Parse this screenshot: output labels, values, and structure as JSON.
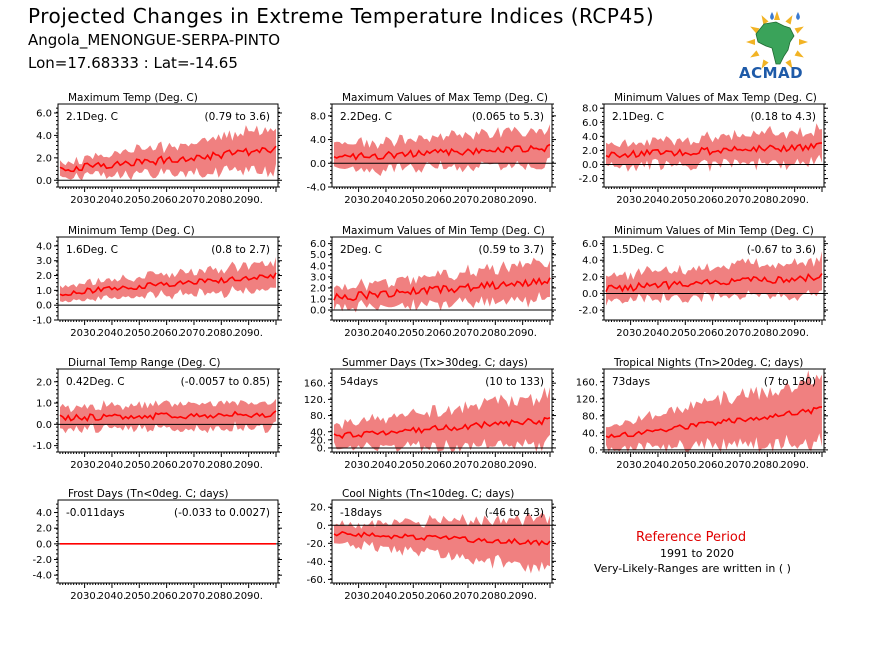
{
  "header": {
    "title": "Projected Changes in Extreme Temperature Indices (RCP45)",
    "station": "Angola_MENONGUE-SERPA-PINTO",
    "coords": "Lon=17.68333 : Lat=-14.65",
    "logo_text": "ACMAD"
  },
  "reference": {
    "title": "Reference Period",
    "years": "1991 to 2020",
    "note": "Very-Likely-Ranges are written in ( )"
  },
  "colors": {
    "band": "#f08080",
    "line": "#ff0000",
    "axis": "#000000",
    "zero": "#000000",
    "ref_title": "#e00000"
  },
  "chart_data": [
    {
      "type": "line",
      "title": "Maximum Temp (Deg. C)",
      "summary": "2.1Deg. C",
      "range": "(0.79 to 3.6)",
      "x_start": 2021,
      "x_end": 2100,
      "xticks": [
        "2030.",
        "2040.",
        "2050.",
        "2060.",
        "2070.",
        "2080.",
        "2090."
      ],
      "yticks": [
        "0.0",
        "2.0",
        "4.0",
        "6.0"
      ],
      "ylim": [
        -0.6,
        6.8
      ],
      "median_start": 1.0,
      "median_end": 2.7,
      "band_start": 0.6,
      "band_end": 1.9,
      "noise": 0.35
    },
    {
      "type": "line",
      "title": "Maximum Values of Max Temp (Deg. C)",
      "summary": "2.2Deg. C",
      "range": "(0.065 to 5.3)",
      "x_start": 2021,
      "x_end": 2100,
      "xticks": [
        "2030.",
        "2040.",
        "2050.",
        "2060.",
        "2070.",
        "2080.",
        "2090."
      ],
      "yticks": [
        "-4.0",
        "0.0",
        "4.0",
        "8.0"
      ],
      "ylim": [
        -4.0,
        10.0
      ],
      "median_start": 1.0,
      "median_end": 2.6,
      "band_start": 2.2,
      "band_end": 3.0,
      "noise": 0.6
    },
    {
      "type": "line",
      "title": "Minimum Values of Max Temp (Deg. C)",
      "summary": "2.1Deg. C",
      "range": "(0.18 to 4.3)",
      "x_start": 2021,
      "x_end": 2100,
      "xticks": [
        "2030.",
        "2040.",
        "2050.",
        "2060.",
        "2070.",
        "2080.",
        "2090."
      ],
      "yticks": [
        "-2.0",
        "0.0",
        "2.0",
        "4.0",
        "6.0",
        "8.0"
      ],
      "ylim": [
        -3.2,
        8.6
      ],
      "median_start": 1.3,
      "median_end": 2.6,
      "band_start": 1.6,
      "band_end": 2.3,
      "noise": 0.5
    },
    {
      "type": "line",
      "title": "Minimum Temp (Deg. C)",
      "summary": "1.6Deg. C",
      "range": "(0.8 to 2.7)",
      "x_start": 2021,
      "x_end": 2100,
      "xticks": [
        "2030.",
        "2040.",
        "2050.",
        "2060.",
        "2070.",
        "2080.",
        "2090."
      ],
      "yticks": [
        "-1.0",
        "0.0",
        "1.0",
        "2.0",
        "3.0",
        "4.0"
      ],
      "ylim": [
        -1.0,
        4.6
      ],
      "median_start": 0.8,
      "median_end": 2.0,
      "band_start": 0.5,
      "band_end": 0.9,
      "noise": 0.2
    },
    {
      "type": "line",
      "title": "Maximum Values of Min Temp (Deg. C)",
      "summary": "2Deg. C",
      "range": "(0.59 to 3.7)",
      "x_start": 2021,
      "x_end": 2100,
      "xticks": [
        "2030.",
        "2040.",
        "2050.",
        "2060.",
        "2070.",
        "2080.",
        "2090."
      ],
      "yticks": [
        "0.0",
        "1.0",
        "2.0",
        "3.0",
        "4.0",
        "5.0",
        "6.0"
      ],
      "ylim": [
        -0.9,
        6.6
      ],
      "median_start": 1.1,
      "median_end": 2.6,
      "band_start": 0.9,
      "band_end": 1.7,
      "noise": 0.35
    },
    {
      "type": "line",
      "title": "Minimum Values of Min Temp (Deg. C)",
      "summary": "1.5Deg. C",
      "range": "(-0.67 to 3.6)",
      "x_start": 2021,
      "x_end": 2100,
      "xticks": [
        "2030.",
        "2040.",
        "2050.",
        "2060.",
        "2070.",
        "2080.",
        "2090."
      ],
      "yticks": [
        "-2.0",
        "0.0",
        "2.0",
        "4.0",
        "6.0"
      ],
      "ylim": [
        -3.2,
        6.8
      ],
      "median_start": 0.6,
      "median_end": 2.0,
      "band_start": 1.5,
      "band_end": 2.2,
      "noise": 0.45
    },
    {
      "type": "line",
      "title": "Diurnal Temp Range (Deg. C)",
      "summary": "0.42Deg. C",
      "range": "(-0.0057 to 0.85)",
      "x_start": 2021,
      "x_end": 2100,
      "xticks": [
        "2030.",
        "2040.",
        "2050.",
        "2060.",
        "2070.",
        "2080.",
        "2090."
      ],
      "yticks": [
        "-1.0",
        "0.0",
        "1.0",
        "2.0"
      ],
      "ylim": [
        -1.3,
        2.6
      ],
      "median_start": 0.3,
      "median_end": 0.5,
      "band_start": 0.5,
      "band_end": 0.6,
      "noise": 0.15
    },
    {
      "type": "line",
      "title": "Summer Days (Tx>30deg. C; days)",
      "summary": "54days",
      "range": "(10 to 133)",
      "x_start": 2021,
      "x_end": 2100,
      "xticks": [
        "2030.",
        "2040.",
        "2050.",
        "2060.",
        "2070.",
        "2080.",
        "2090."
      ],
      "yticks": [
        "0.",
        "20.",
        "40.",
        "80.",
        "120.",
        "160."
      ],
      "ylim": [
        -10.0,
        195.0
      ],
      "median_start": 30.0,
      "median_end": 68.0,
      "band_start": 28.0,
      "band_end": 60.0,
      "noise": 8.0
    },
    {
      "type": "line",
      "title": "Tropical Nights (Tn>20deg. C; days)",
      "summary": "73days",
      "range": "(7 to 130)",
      "x_start": 2021,
      "x_end": 2100,
      "xticks": [
        "2030.",
        "2040.",
        "2050.",
        "2060.",
        "2070.",
        "2080.",
        "2090."
      ],
      "yticks": [
        "0.",
        "40.",
        "80.",
        "120.",
        "160."
      ],
      "ylim": [
        -5.0,
        190.0
      ],
      "median_start": 30.0,
      "median_end": 95.0,
      "band_start": 25.0,
      "band_end": 78.0,
      "noise": 7.0
    },
    {
      "type": "line",
      "title": "Frost Days (Tn<0deg. C; days)",
      "summary": "-0.011days",
      "range": "(-0.033 to 0.0027)",
      "x_start": 2021,
      "x_end": 2100,
      "xticks": [
        "2030.",
        "2040.",
        "2050.",
        "2060.",
        "2070.",
        "2080.",
        "2090."
      ],
      "yticks": [
        "-4.0",
        "-2.0",
        "0.0",
        "2.0",
        "4.0"
      ],
      "ylim": [
        -5.0,
        5.6
      ],
      "median_start": 0.0,
      "median_end": 0.0,
      "band_start": 0.04,
      "band_end": 0.04,
      "noise": 0.0
    },
    {
      "type": "line",
      "title": "Cool Nights (Tn<10deg. C; days)",
      "summary": "-18days",
      "range": "(-46 to 4.3)",
      "x_start": 2021,
      "x_end": 2100,
      "xticks": [
        "2030.",
        "2040.",
        "2050.",
        "2060.",
        "2070.",
        "2080.",
        "2090."
      ],
      "yticks": [
        "-60.",
        "-40.",
        "-20.",
        "0.",
        "20."
      ],
      "ylim": [
        -64.0,
        28.0
      ],
      "median_start": -9.0,
      "median_end": -20.0,
      "band_start": 10.0,
      "band_end": 28.0,
      "noise": 3.0
    }
  ]
}
